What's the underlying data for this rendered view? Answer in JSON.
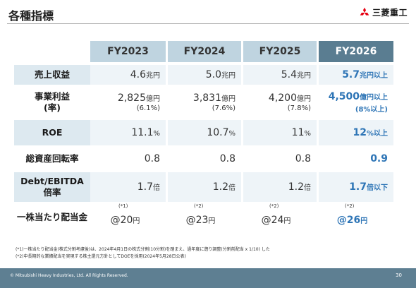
{
  "title": "各種指標",
  "logo": {
    "text": "三菱重工",
    "icon": "three-diamond-logo",
    "color": "#e60012"
  },
  "columns": [
    "FY2023",
    "FY2024",
    "FY2025",
    "FY2026"
  ],
  "rows": {
    "revenue": {
      "label": "売上収益",
      "v2023": "4.6",
      "v2024": "5.0",
      "v2025": "5.4",
      "v2026": "5.7",
      "unit": "兆円",
      "target_unit": "兆円以上"
    },
    "profit": {
      "label_1": "事業利益",
      "label_2": "(率)",
      "v2023": "2,825",
      "v2024": "3,831",
      "v2025": "4,200",
      "v2026": "4,500",
      "unit": "億円",
      "target_unit": "億円以上",
      "r2023": "(6.1%)",
      "r2024": "(7.6%)",
      "r2025": "(7.8%)",
      "r2026": "(8%以上)"
    },
    "roe": {
      "label": "ROE",
      "v2023": "11.1",
      "v2024": "10.7",
      "v2025": "11",
      "v2026": "12",
      "unit": "%",
      "target_unit": "%以上"
    },
    "turnover": {
      "label": "総資産回転率",
      "v2023": "0.8",
      "v2024": "0.8",
      "v2025": "0.8",
      "v2026": "0.9"
    },
    "debt": {
      "label_1": "Debt/EBITDA",
      "label_2": "倍率",
      "v2023": "1.7",
      "v2024": "1.2",
      "v2025": "1.2",
      "v2026": "1.7",
      "unit": "倍",
      "target_unit": "倍以下"
    },
    "dps": {
      "label": "一株当たり配当金",
      "v2023": "@20",
      "v2024": "@23",
      "v2025": "@24",
      "v2026": "@26",
      "unit": "円",
      "ref2023": "(*1)",
      "ref2024": "(*2)",
      "ref2025": "(*2)",
      "ref2026": "(*2)"
    }
  },
  "footnotes": {
    "note1": "(*1)一株当たり配当金(株式分割考慮後)は、2024年4月1日の株式分割(10分割)を踏まえ、過年度に遡り調整(分割前配当 x 1/10) した",
    "note2": "(*2)中長期的な業績配当を実現する株主還元方針としてDOEを採用(2024年5月28日公表)"
  },
  "footer": {
    "copyright": "© Mitsubishi Heavy Industries, Ltd.  All Rights Reserved.",
    "page": "30"
  },
  "colors": {
    "header": "#bfd4e0",
    "target_header": "#5a7d91",
    "target_text": "#2e75b6",
    "footer": "#5e7f92",
    "label_band": "#dde9f0"
  }
}
